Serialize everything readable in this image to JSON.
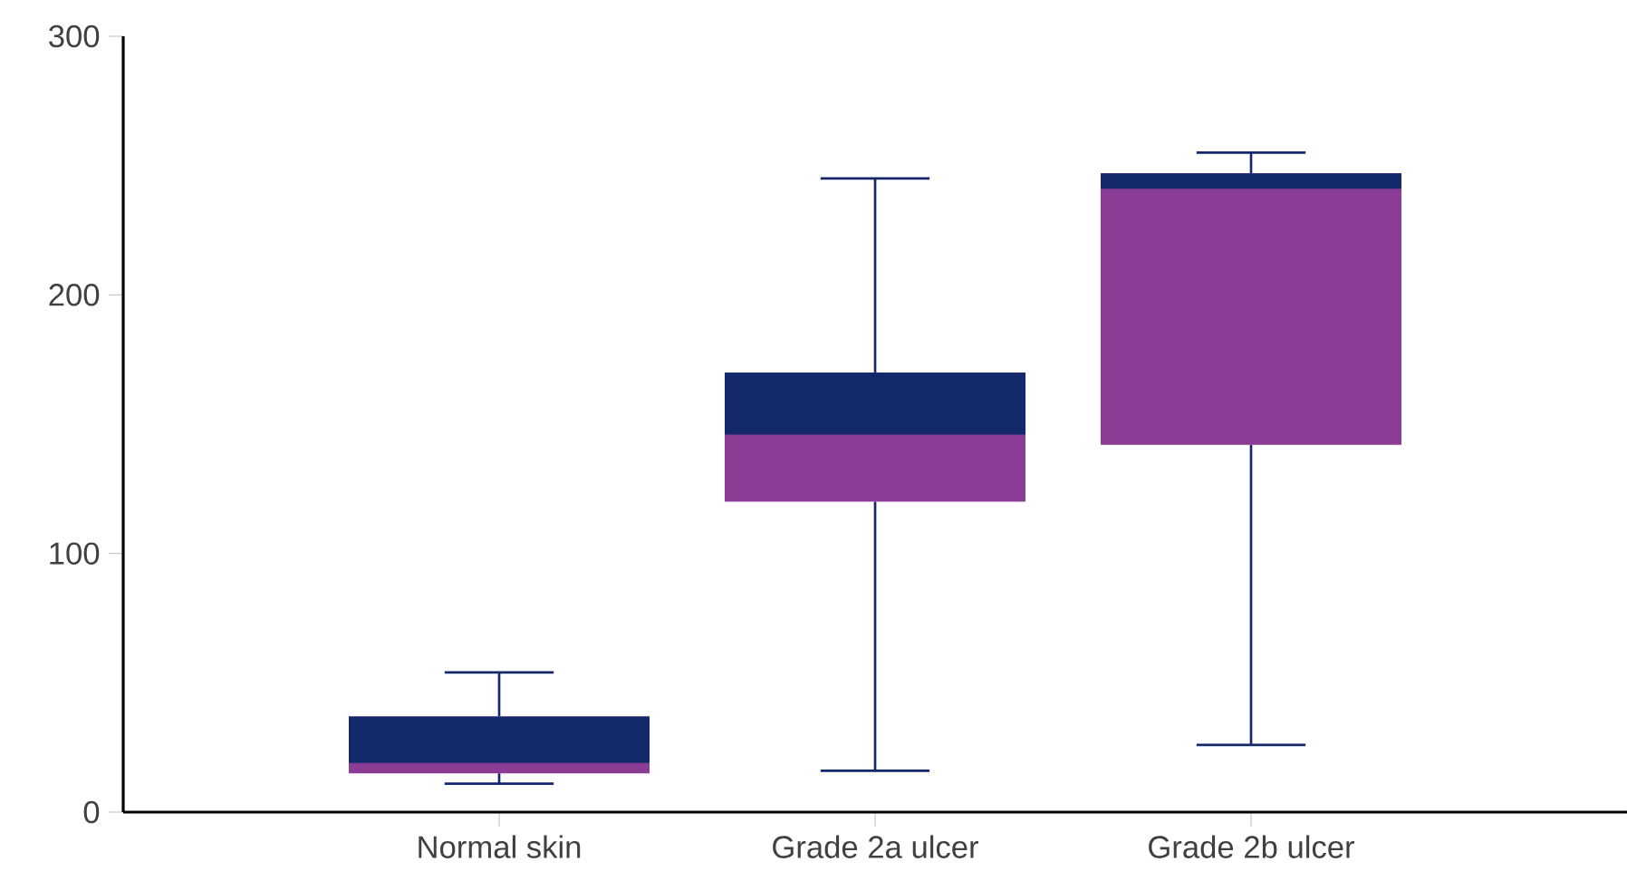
{
  "chart_data": {
    "type": "box",
    "categories": [
      "Normal skin",
      "Grade 2a ulcer",
      "Grade 2b ulcer"
    ],
    "boxes": [
      {
        "low": 11,
        "q1": 15,
        "median": 19,
        "q3": 37,
        "high": 54
      },
      {
        "low": 16,
        "q1": 120,
        "median": 146,
        "q3": 170,
        "high": 245
      },
      {
        "low": 26,
        "q1": 142,
        "median": 241,
        "q3": 247,
        "high": 255
      }
    ],
    "color": "#13296b",
    "colors": [
      "#8b3d96",
      "#8b3d96",
      "#8b3d96"
    ],
    "ylim": [
      0,
      300
    ],
    "yticks": [
      0,
      100,
      200,
      300
    ]
  }
}
